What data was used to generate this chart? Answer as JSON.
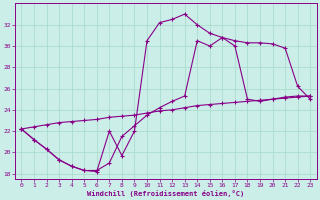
{
  "xlabel": "Windchill (Refroidissement éolien,°C)",
  "bg_color": "#cceee8",
  "line_color": "#880088",
  "grid_color": "#aaddcc",
  "xlim": [
    -0.5,
    23.5
  ],
  "ylim": [
    17.5,
    34.0
  ],
  "yticks": [
    18,
    20,
    22,
    24,
    26,
    28,
    30,
    32
  ],
  "xticks": [
    0,
    1,
    2,
    3,
    4,
    5,
    6,
    7,
    8,
    9,
    10,
    11,
    12,
    13,
    14,
    15,
    16,
    17,
    18,
    19,
    20,
    21,
    22,
    23
  ],
  "curve1_x": [
    0,
    1,
    2,
    3,
    4,
    5,
    6,
    7,
    8,
    9,
    10,
    11,
    12,
    13,
    14,
    15,
    16,
    17,
    18,
    19,
    20,
    21,
    22,
    23
  ],
  "curve1_y": [
    22.2,
    21.2,
    20.3,
    19.3,
    18.7,
    18.3,
    18.2,
    22.0,
    19.7,
    22.0,
    30.5,
    32.2,
    32.5,
    33.0,
    32.0,
    31.2,
    30.8,
    30.5,
    30.3,
    30.3,
    30.2,
    29.8,
    26.2,
    25.0
  ],
  "curve2_x": [
    0,
    1,
    2,
    3,
    4,
    5,
    6,
    7,
    8,
    9,
    10,
    11,
    12,
    13,
    14,
    15,
    16,
    17,
    18,
    19,
    20,
    21,
    22,
    23
  ],
  "curve2_y": [
    22.2,
    22.4,
    22.6,
    22.8,
    22.9,
    23.0,
    23.1,
    23.3,
    23.4,
    23.5,
    23.7,
    23.9,
    24.0,
    24.2,
    24.4,
    24.5,
    24.6,
    24.7,
    24.8,
    24.9,
    25.0,
    25.1,
    25.2,
    25.3
  ],
  "curve3_x": [
    0,
    1,
    2,
    3,
    4,
    5,
    6,
    7,
    8,
    9,
    10,
    11,
    12,
    13,
    14,
    15,
    16,
    17,
    18,
    19,
    20,
    21,
    22,
    23
  ],
  "curve3_y": [
    22.2,
    21.2,
    20.3,
    19.3,
    18.7,
    18.3,
    18.3,
    19.0,
    21.5,
    22.5,
    23.5,
    24.2,
    24.8,
    25.3,
    30.5,
    30.0,
    30.8,
    30.0,
    25.0,
    24.8,
    25.0,
    25.2,
    25.3,
    25.3
  ]
}
